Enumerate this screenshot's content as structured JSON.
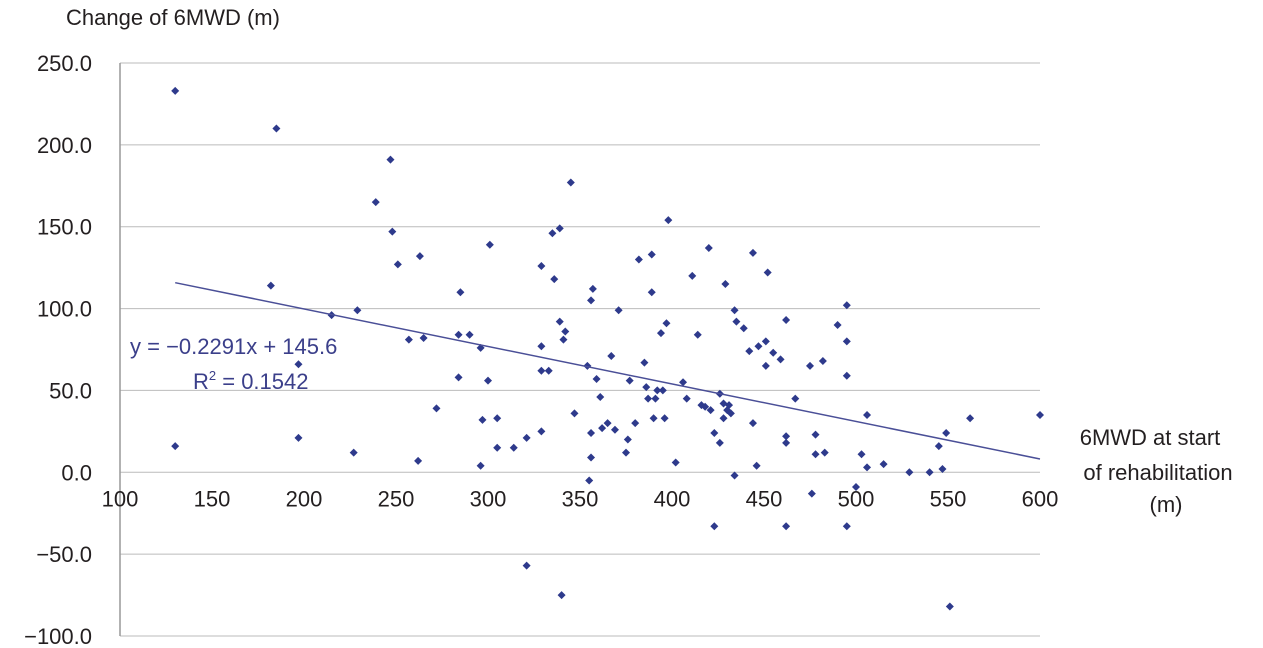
{
  "chart_data": {
    "type": "scatter",
    "ylabel": "Change of 6MWD (m)",
    "xlabel_lines": [
      "6MWD at start",
      "of rehabilitation",
      "(m)"
    ],
    "xlim": [
      100,
      600
    ],
    "ylim": [
      -100,
      250
    ],
    "x_ticks": [
      "100",
      "150",
      "200",
      "250",
      "300",
      "350",
      "400",
      "450",
      "500",
      "550",
      "600"
    ],
    "y_ticks": [
      "250.0",
      "200.0",
      "150.0",
      "100.0",
      "50.0",
      "0.0",
      "−50.0",
      "−100.0"
    ],
    "grid": "horizontal",
    "colors": {
      "points": "#2e3a8c",
      "trendline": "#4a4f97",
      "grid": "#bbbbbb",
      "equation": "#3b3f8a"
    },
    "trendline": {
      "slope": -0.2291,
      "intercept": 145.6,
      "x_range": [
        130,
        600
      ],
      "equation": "y = −0.2291x + 145.6",
      "r2_prefix": "R",
      "r2_sup": "2",
      "r2_value": " = 0.1542"
    },
    "series": [
      {
        "points": [
          [
            130,
            233
          ],
          [
            130,
            16
          ],
          [
            182,
            114
          ],
          [
            185,
            210
          ],
          [
            197,
            66
          ],
          [
            197,
            21
          ],
          [
            215,
            96
          ],
          [
            227,
            12
          ],
          [
            229,
            99
          ],
          [
            239,
            165
          ],
          [
            247,
            191
          ],
          [
            248,
            147
          ],
          [
            251,
            127
          ],
          [
            257,
            81
          ],
          [
            262,
            7
          ],
          [
            263,
            132
          ],
          [
            265,
            82
          ],
          [
            272,
            39
          ],
          [
            284,
            84
          ],
          [
            285,
            110
          ],
          [
            284,
            58
          ],
          [
            290,
            84
          ],
          [
            296,
            76
          ],
          [
            297,
            32
          ],
          [
            296,
            4
          ],
          [
            300,
            56
          ],
          [
            301,
            139
          ],
          [
            305,
            15
          ],
          [
            305,
            33
          ],
          [
            314,
            15
          ],
          [
            321,
            21
          ],
          [
            321,
            -57
          ],
          [
            329,
            126
          ],
          [
            329,
            77
          ],
          [
            329,
            62
          ],
          [
            329,
            25
          ],
          [
            333,
            62
          ],
          [
            335,
            146
          ],
          [
            336,
            118
          ],
          [
            339,
            149
          ],
          [
            339,
            92
          ],
          [
            340,
            -75
          ],
          [
            341,
            81
          ],
          [
            342,
            86
          ],
          [
            345,
            177
          ],
          [
            347,
            36
          ],
          [
            354,
            65
          ],
          [
            355,
            -5
          ],
          [
            356,
            105
          ],
          [
            356,
            24
          ],
          [
            356,
            9
          ],
          [
            357,
            112
          ],
          [
            359,
            57
          ],
          [
            361,
            46
          ],
          [
            362,
            27
          ],
          [
            365,
            30
          ],
          [
            367,
            71
          ],
          [
            369,
            26
          ],
          [
            371,
            99
          ],
          [
            375,
            12
          ],
          [
            376,
            20
          ],
          [
            377,
            56
          ],
          [
            380,
            30
          ],
          [
            382,
            130
          ],
          [
            385,
            67
          ],
          [
            386,
            52
          ],
          [
            387,
            45
          ],
          [
            389,
            133
          ],
          [
            389,
            110
          ],
          [
            390,
            33
          ],
          [
            391,
            45
          ],
          [
            392,
            50
          ],
          [
            394,
            85
          ],
          [
            395,
            50
          ],
          [
            396,
            33
          ],
          [
            397,
            91
          ],
          [
            398,
            154
          ],
          [
            402,
            6
          ],
          [
            406,
            55
          ],
          [
            408,
            45
          ],
          [
            411,
            120
          ],
          [
            414,
            84
          ],
          [
            416,
            41
          ],
          [
            418,
            40
          ],
          [
            420,
            137
          ],
          [
            421,
            38
          ],
          [
            423,
            24
          ],
          [
            423,
            -33
          ],
          [
            426,
            18
          ],
          [
            426,
            48
          ],
          [
            428,
            42
          ],
          [
            428,
            33
          ],
          [
            429,
            115
          ],
          [
            430,
            38
          ],
          [
            431,
            41
          ],
          [
            432,
            36
          ],
          [
            434,
            -2
          ],
          [
            434,
            99
          ],
          [
            435,
            92
          ],
          [
            439,
            88
          ],
          [
            442,
            74
          ],
          [
            444,
            30
          ],
          [
            444,
            134
          ],
          [
            446,
            4
          ],
          [
            447,
            77
          ],
          [
            451,
            80
          ],
          [
            451,
            65
          ],
          [
            452,
            122
          ],
          [
            455,
            73
          ],
          [
            459,
            69
          ],
          [
            462,
            93
          ],
          [
            462,
            22
          ],
          [
            462,
            18
          ],
          [
            462,
            -33
          ],
          [
            467,
            45
          ],
          [
            475,
            65
          ],
          [
            476,
            -13
          ],
          [
            478,
            23
          ],
          [
            478,
            11
          ],
          [
            482,
            68
          ],
          [
            483,
            12
          ],
          [
            490,
            90
          ],
          [
            495,
            102
          ],
          [
            495,
            80
          ],
          [
            495,
            59
          ],
          [
            495,
            -33
          ],
          [
            500,
            -9
          ],
          [
            503,
            11
          ],
          [
            506,
            35
          ],
          [
            506,
            3
          ],
          [
            515,
            5
          ],
          [
            529,
            0
          ],
          [
            540,
            0
          ],
          [
            545,
            16
          ],
          [
            547,
            2
          ],
          [
            549,
            24
          ],
          [
            551,
            -82
          ],
          [
            562,
            33
          ],
          [
            600,
            35
          ]
        ]
      }
    ]
  }
}
